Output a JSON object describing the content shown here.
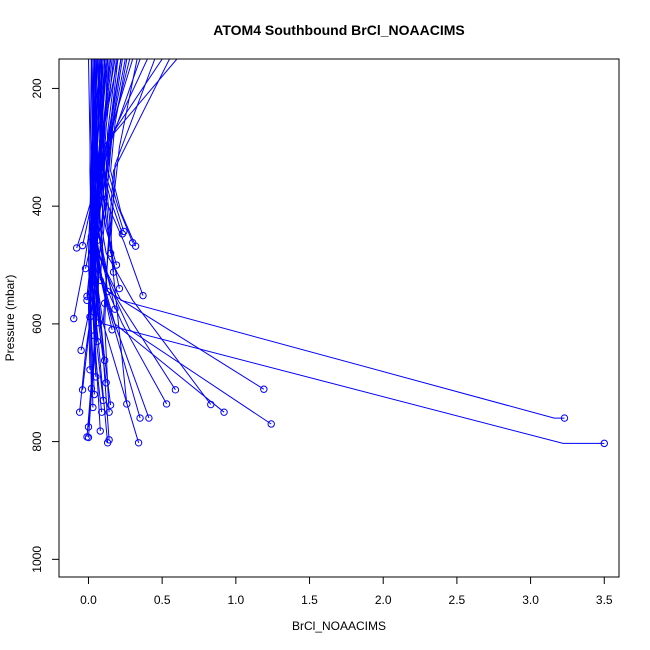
{
  "chart_data": {
    "type": "line",
    "title": "ATOM4 Southbound BrCl_NOAACIMS",
    "xlabel": "BrCl_NOAACIMS",
    "ylabel": "Pressure (mbar)",
    "xlim": [
      -0.2,
      3.6
    ],
    "ylim": [
      1030,
      150
    ],
    "y_reversed": true,
    "x_ticks": [
      "0.0",
      "0.5",
      "1.0",
      "1.5",
      "2.0",
      "2.5",
      "3.0",
      "3.5"
    ],
    "y_ticks": [
      "200",
      "400",
      "600",
      "800",
      "1000"
    ],
    "series_color": "#0000ff",
    "markers": "open-circle",
    "series": [
      {
        "x": [
          3.5,
          3.22,
          0.1,
          0.12,
          0.05,
          0.08,
          0.15,
          0.2
        ],
        "y": [
          803,
          803,
          600,
          520,
          460,
          380,
          260,
          150
        ]
      },
      {
        "x": [
          3.23,
          3.16,
          0.22,
          0.1,
          0.06,
          0.12,
          0.18,
          0.25
        ],
        "y": [
          760,
          760,
          560,
          500,
          430,
          350,
          240,
          150
        ]
      },
      {
        "x": [
          1.24,
          0.28,
          0.15,
          0.08,
          0.1,
          0.14,
          0.35
        ],
        "y": [
          770,
          610,
          540,
          470,
          420,
          300,
          150
        ]
      },
      {
        "x": [
          1.19,
          0.1,
          0.05,
          0.12,
          0.16,
          0.6
        ],
        "y": [
          711,
          540,
          470,
          390,
          280,
          150
        ]
      },
      {
        "x": [
          0.92,
          0.18,
          0.09,
          0.04,
          0.08,
          0.3
        ],
        "y": [
          750,
          600,
          520,
          440,
          330,
          150
        ]
      },
      {
        "x": [
          0.83,
          0.3,
          0.12,
          0.07,
          0.1,
          0.5
        ],
        "y": [
          737,
          560,
          480,
          410,
          300,
          150
        ]
      },
      {
        "x": [
          0.59,
          0.2,
          0.08,
          0.03,
          0.12,
          0.22
        ],
        "y": [
          712,
          560,
          490,
          420,
          300,
          150
        ]
      },
      {
        "x": [
          0.53,
          0.23,
          0.09,
          0.05,
          0.06,
          0.15
        ],
        "y": [
          736,
          600,
          520,
          460,
          350,
          150
        ]
      },
      {
        "x": [
          0.41,
          0.15,
          0.06,
          0.02,
          0.05,
          0.1
        ],
        "y": [
          760,
          580,
          500,
          420,
          320,
          150
        ]
      },
      {
        "x": [
          0.35,
          0.12,
          0.05,
          0.02,
          0.08
        ],
        "y": [
          760,
          560,
          480,
          380,
          150
        ]
      },
      {
        "x": [
          0.34,
          0.1,
          0.04,
          0.06,
          0.12
        ],
        "y": [
          802,
          600,
          500,
          400,
          150
        ]
      },
      {
        "x": [
          0.15,
          0.08,
          0.04,
          0.07,
          0.16
        ],
        "y": [
          738,
          600,
          480,
          340,
          150
        ]
      },
      {
        "x": [
          0.14,
          0.09,
          0.03,
          0.05,
          0.04
        ],
        "y": [
          797,
          620,
          520,
          400,
          150
        ]
      },
      {
        "x": [
          0.13,
          0.07,
          0.02,
          0.09,
          0.06
        ],
        "y": [
          802,
          640,
          510,
          380,
          150
        ]
      },
      {
        "x": [
          0.08,
          0.05,
          0.02,
          0.04,
          0.02
        ],
        "y": [
          782,
          650,
          540,
          420,
          150
        ]
      },
      {
        "x": [
          0.0,
          0.03,
          0.06,
          0.02,
          0.0
        ],
        "y": [
          793,
          680,
          560,
          430,
          150
        ]
      },
      {
        "x": [
          0.0,
          0.04,
          0.07,
          0.05,
          0.1
        ],
        "y": [
          775,
          660,
          520,
          440,
          150
        ]
      },
      {
        "x": [
          -0.01,
          0.02,
          0.05,
          0.03,
          0.08
        ],
        "y": [
          792,
          700,
          600,
          470,
          150
        ]
      },
      {
        "x": [
          -0.06,
          -0.02,
          0.04,
          0.06,
          0.05
        ],
        "y": [
          750,
          650,
          540,
          450,
          150
        ]
      },
      {
        "x": [
          -0.1,
          -0.03,
          0.02,
          0.04,
          0.03
        ],
        "y": [
          591,
          500,
          420,
          330,
          150
        ]
      },
      {
        "x": [
          -0.08,
          -0.04,
          0.03,
          0.05,
          0.07
        ],
        "y": [
          471,
          440,
          380,
          300,
          150
        ]
      },
      {
        "x": [
          -0.04,
          0.0,
          0.05,
          0.08,
          0.12
        ],
        "y": [
          467,
          420,
          360,
          280,
          150
        ]
      },
      {
        "x": [
          -0.05,
          0.02,
          0.04,
          0.09,
          0.14
        ],
        "y": [
          645,
          560,
          480,
          350,
          150
        ]
      },
      {
        "x": [
          -0.04,
          0.01,
          0.06,
          0.03,
          0.05
        ],
        "y": [
          712,
          600,
          500,
          380,
          150
        ]
      },
      {
        "x": [
          -0.02,
          0.03,
          0.05,
          0.07,
          0.11
        ],
        "y": [
          506,
          450,
          400,
          320,
          150
        ]
      },
      {
        "x": [
          -0.01,
          0.02,
          0.04,
          0.1,
          0.13
        ],
        "y": [
          553,
          480,
          420,
          330,
          150
        ]
      },
      {
        "x": [
          -0.01,
          0.03,
          0.08,
          0.06,
          0.09
        ],
        "y": [
          560,
          500,
          430,
          300,
          150
        ]
      },
      {
        "x": [
          0.3,
          0.2,
          0.12,
          0.16,
          0.22
        ],
        "y": [
          462,
          400,
          330,
          250,
          150
        ]
      },
      {
        "x": [
          0.32,
          0.22,
          0.15,
          0.18,
          0.26
        ],
        "y": [
          468,
          410,
          340,
          260,
          150
        ]
      },
      {
        "x": [
          0.37,
          0.24,
          0.1,
          0.14,
          0.4
        ],
        "y": [
          552,
          460,
          380,
          290,
          150
        ]
      },
      {
        "x": [
          0.24,
          0.16,
          0.08,
          0.12,
          0.18
        ],
        "y": [
          443,
          380,
          320,
          240,
          150
        ]
      },
      {
        "x": [
          0.23,
          0.15,
          0.09,
          0.11,
          0.2
        ],
        "y": [
          447,
          390,
          330,
          260,
          150
        ]
      },
      {
        "x": [
          0.21,
          0.14,
          0.1,
          0.08,
          0.09
        ],
        "y": [
          540,
          460,
          380,
          280,
          150
        ]
      },
      {
        "x": [
          0.19,
          0.12,
          0.07,
          0.1,
          0.15
        ],
        "y": [
          500,
          440,
          370,
          270,
          150
        ]
      },
      {
        "x": [
          0.18,
          0.1,
          0.06,
          0.05,
          0.04
        ],
        "y": [
          575,
          480,
          390,
          290,
          150
        ]
      },
      {
        "x": [
          0.16,
          0.08,
          0.05,
          0.07,
          0.13
        ],
        "y": [
          610,
          520,
          430,
          310,
          150
        ]
      },
      {
        "x": [
          0.13,
          0.09,
          0.04,
          0.06,
          0.1
        ],
        "y": [
          545,
          470,
          400,
          300,
          150
        ]
      },
      {
        "x": [
          0.12,
          0.06,
          0.03,
          0.08,
          0.11
        ],
        "y": [
          700,
          580,
          470,
          340,
          150
        ]
      },
      {
        "x": [
          0.11,
          0.07,
          0.05,
          0.09,
          0.07
        ],
        "y": [
          662,
          560,
          450,
          320,
          150
        ]
      },
      {
        "x": [
          0.1,
          0.05,
          0.02,
          0.06,
          0.05
        ],
        "y": [
          730,
          620,
          500,
          360,
          150
        ]
      },
      {
        "x": [
          0.09,
          0.04,
          0.03,
          0.05,
          0.03
        ],
        "y": [
          750,
          640,
          520,
          370,
          150
        ]
      },
      {
        "x": [
          0.07,
          0.05,
          0.04,
          0.02,
          0.06
        ],
        "y": [
          598,
          510,
          430,
          300,
          150
        ]
      },
      {
        "x": [
          0.06,
          0.03,
          0.02,
          0.04,
          0.08
        ],
        "y": [
          630,
          540,
          450,
          320,
          150
        ]
      },
      {
        "x": [
          0.05,
          0.03,
          0.01,
          0.03,
          0.02
        ],
        "y": [
          690,
          580,
          470,
          350,
          150
        ]
      },
      {
        "x": [
          0.04,
          0.02,
          0.01,
          0.02,
          0.04
        ],
        "y": [
          720,
          610,
          490,
          360,
          150
        ]
      },
      {
        "x": [
          0.03,
          0.02,
          0.01,
          0.03,
          0.06
        ],
        "y": [
          742,
          630,
          510,
          370,
          150
        ]
      },
      {
        "x": [
          0.02,
          0.01,
          0.0,
          0.02,
          0.03
        ],
        "y": [
          710,
          600,
          480,
          330,
          150
        ]
      },
      {
        "x": [
          0.01,
          0.0,
          0.02,
          0.01,
          0.02
        ],
        "y": [
          678,
          570,
          460,
          340,
          150
        ]
      },
      {
        "x": [
          0.01,
          0.02,
          0.03,
          0.05,
          0.04
        ],
        "y": [
          588,
          500,
          410,
          310,
          150
        ]
      },
      {
        "x": [
          0.02,
          0.04,
          0.05,
          0.03,
          0.09
        ],
        "y": [
          452,
          400,
          340,
          260,
          150
        ]
      },
      {
        "x": [
          0.06,
          0.08,
          0.1,
          0.12,
          0.17
        ],
        "y": [
          458,
          405,
          345,
          265,
          150
        ]
      },
      {
        "x": [
          0.15,
          0.13,
          0.11,
          0.09,
          0.12
        ],
        "y": [
          480,
          420,
          350,
          270,
          150
        ]
      },
      {
        "x": [
          0.17,
          0.15,
          0.12,
          0.13,
          0.19
        ],
        "y": [
          512,
          440,
          360,
          275,
          150
        ]
      },
      {
        "x": [
          0.08,
          0.1,
          0.13,
          0.15,
          0.23
        ],
        "y": [
          526,
          450,
          370,
          280,
          150
        ]
      },
      {
        "x": [
          0.04,
          0.06,
          0.09,
          0.11,
          0.28
        ],
        "y": [
          620,
          530,
          440,
          320,
          150
        ]
      },
      {
        "x": [
          0.11,
          0.13,
          0.16,
          0.21,
          0.33
        ],
        "y": [
          565,
          490,
          410,
          300,
          150
        ]
      },
      {
        "x": [
          0.26,
          0.2,
          0.15,
          0.18,
          0.45
        ],
        "y": [
          736,
          590,
          470,
          330,
          150
        ]
      },
      {
        "x": [
          0.14,
          0.11,
          0.13,
          0.17,
          0.55
        ],
        "y": [
          750,
          600,
          480,
          340,
          150
        ]
      }
    ]
  }
}
